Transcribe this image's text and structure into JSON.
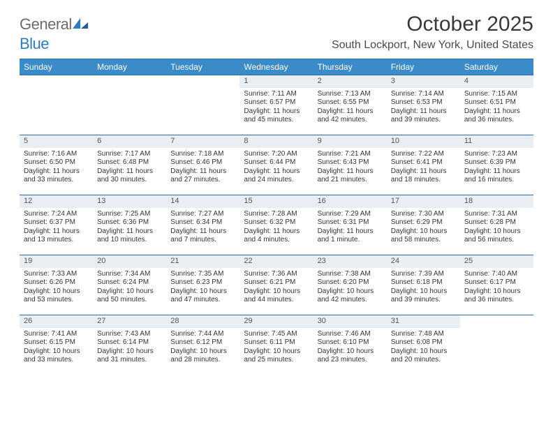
{
  "logo": {
    "textGray": "General",
    "textBlue": "Blue"
  },
  "title": "October 2025",
  "location": "South Lockport, New York, United States",
  "colors": {
    "headerBg": "#3b8bc9",
    "headerBorder": "#2a6ea8",
    "dayBarBg": "#e9eef3",
    "logoBlue": "#2f7bbf"
  },
  "dayHeaders": [
    "Sunday",
    "Monday",
    "Tuesday",
    "Wednesday",
    "Thursday",
    "Friday",
    "Saturday"
  ],
  "weeks": [
    [
      {
        "empty": true
      },
      {
        "empty": true
      },
      {
        "empty": true
      },
      {
        "day": "1",
        "sunrise": "7:11 AM",
        "sunset": "6:57 PM",
        "daylight": "11 hours and 45 minutes."
      },
      {
        "day": "2",
        "sunrise": "7:13 AM",
        "sunset": "6:55 PM",
        "daylight": "11 hours and 42 minutes."
      },
      {
        "day": "3",
        "sunrise": "7:14 AM",
        "sunset": "6:53 PM",
        "daylight": "11 hours and 39 minutes."
      },
      {
        "day": "4",
        "sunrise": "7:15 AM",
        "sunset": "6:51 PM",
        "daylight": "11 hours and 36 minutes."
      }
    ],
    [
      {
        "day": "5",
        "sunrise": "7:16 AM",
        "sunset": "6:50 PM",
        "daylight": "11 hours and 33 minutes."
      },
      {
        "day": "6",
        "sunrise": "7:17 AM",
        "sunset": "6:48 PM",
        "daylight": "11 hours and 30 minutes."
      },
      {
        "day": "7",
        "sunrise": "7:18 AM",
        "sunset": "6:46 PM",
        "daylight": "11 hours and 27 minutes."
      },
      {
        "day": "8",
        "sunrise": "7:20 AM",
        "sunset": "6:44 PM",
        "daylight": "11 hours and 24 minutes."
      },
      {
        "day": "9",
        "sunrise": "7:21 AM",
        "sunset": "6:43 PM",
        "daylight": "11 hours and 21 minutes."
      },
      {
        "day": "10",
        "sunrise": "7:22 AM",
        "sunset": "6:41 PM",
        "daylight": "11 hours and 18 minutes."
      },
      {
        "day": "11",
        "sunrise": "7:23 AM",
        "sunset": "6:39 PM",
        "daylight": "11 hours and 16 minutes."
      }
    ],
    [
      {
        "day": "12",
        "sunrise": "7:24 AM",
        "sunset": "6:37 PM",
        "daylight": "11 hours and 13 minutes."
      },
      {
        "day": "13",
        "sunrise": "7:25 AM",
        "sunset": "6:36 PM",
        "daylight": "11 hours and 10 minutes."
      },
      {
        "day": "14",
        "sunrise": "7:27 AM",
        "sunset": "6:34 PM",
        "daylight": "11 hours and 7 minutes."
      },
      {
        "day": "15",
        "sunrise": "7:28 AM",
        "sunset": "6:32 PM",
        "daylight": "11 hours and 4 minutes."
      },
      {
        "day": "16",
        "sunrise": "7:29 AM",
        "sunset": "6:31 PM",
        "daylight": "11 hours and 1 minute."
      },
      {
        "day": "17",
        "sunrise": "7:30 AM",
        "sunset": "6:29 PM",
        "daylight": "10 hours and 58 minutes."
      },
      {
        "day": "18",
        "sunrise": "7:31 AM",
        "sunset": "6:28 PM",
        "daylight": "10 hours and 56 minutes."
      }
    ],
    [
      {
        "day": "19",
        "sunrise": "7:33 AM",
        "sunset": "6:26 PM",
        "daylight": "10 hours and 53 minutes."
      },
      {
        "day": "20",
        "sunrise": "7:34 AM",
        "sunset": "6:24 PM",
        "daylight": "10 hours and 50 minutes."
      },
      {
        "day": "21",
        "sunrise": "7:35 AM",
        "sunset": "6:23 PM",
        "daylight": "10 hours and 47 minutes."
      },
      {
        "day": "22",
        "sunrise": "7:36 AM",
        "sunset": "6:21 PM",
        "daylight": "10 hours and 44 minutes."
      },
      {
        "day": "23",
        "sunrise": "7:38 AM",
        "sunset": "6:20 PM",
        "daylight": "10 hours and 42 minutes."
      },
      {
        "day": "24",
        "sunrise": "7:39 AM",
        "sunset": "6:18 PM",
        "daylight": "10 hours and 39 minutes."
      },
      {
        "day": "25",
        "sunrise": "7:40 AM",
        "sunset": "6:17 PM",
        "daylight": "10 hours and 36 minutes."
      }
    ],
    [
      {
        "day": "26",
        "sunrise": "7:41 AM",
        "sunset": "6:15 PM",
        "daylight": "10 hours and 33 minutes."
      },
      {
        "day": "27",
        "sunrise": "7:43 AM",
        "sunset": "6:14 PM",
        "daylight": "10 hours and 31 minutes."
      },
      {
        "day": "28",
        "sunrise": "7:44 AM",
        "sunset": "6:12 PM",
        "daylight": "10 hours and 28 minutes."
      },
      {
        "day": "29",
        "sunrise": "7:45 AM",
        "sunset": "6:11 PM",
        "daylight": "10 hours and 25 minutes."
      },
      {
        "day": "30",
        "sunrise": "7:46 AM",
        "sunset": "6:10 PM",
        "daylight": "10 hours and 23 minutes."
      },
      {
        "day": "31",
        "sunrise": "7:48 AM",
        "sunset": "6:08 PM",
        "daylight": "10 hours and 20 minutes."
      },
      {
        "empty": true
      }
    ]
  ],
  "labels": {
    "sunrise": "Sunrise:",
    "sunset": "Sunset:",
    "daylight": "Daylight:"
  }
}
